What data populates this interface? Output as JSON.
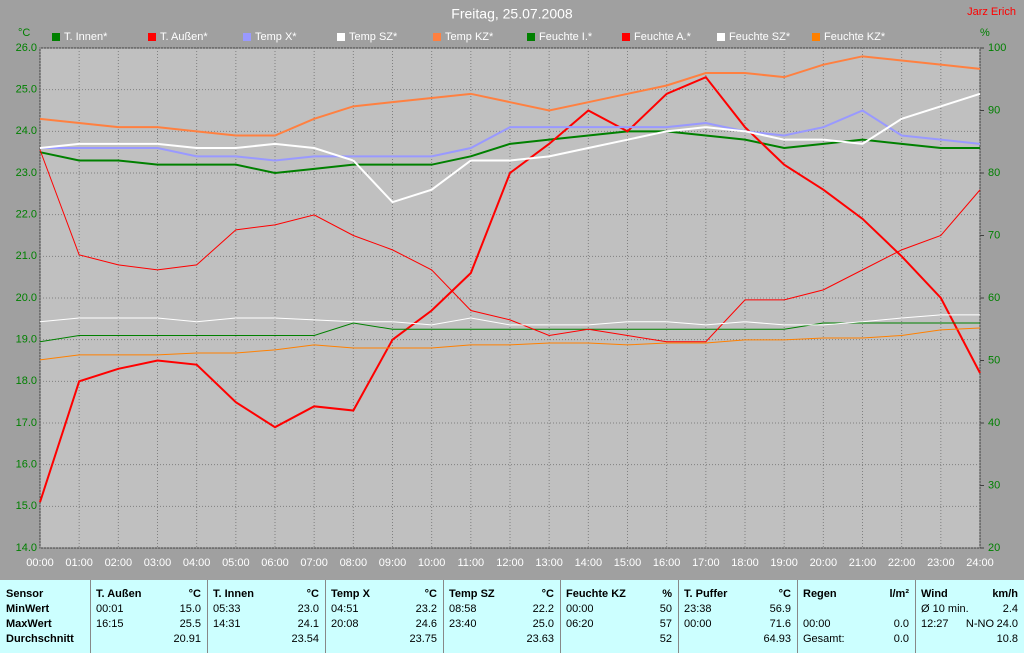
{
  "chart_data": {
    "type": "line",
    "title": "Freitag, 25.07.2008",
    "author": "Jarz Erich",
    "ylabel": "°C",
    "y2label": "%",
    "x": [
      0,
      1,
      2,
      3,
      4,
      5,
      6,
      7,
      8,
      9,
      10,
      11,
      12,
      13,
      14,
      15,
      16,
      17,
      18,
      19,
      20,
      21,
      22,
      23,
      24
    ],
    "xlim": [
      0,
      24
    ],
    "xticks": [
      {
        "value": 0,
        "label": "00:00"
      },
      {
        "value": 1,
        "label": "01:00"
      },
      {
        "value": 2,
        "label": "02:00"
      },
      {
        "value": 3,
        "label": "03:00"
      },
      {
        "value": 4,
        "label": "04:00"
      },
      {
        "value": 5,
        "label": "05:00"
      },
      {
        "value": 6,
        "label": "06:00"
      },
      {
        "value": 7,
        "label": "07:00"
      },
      {
        "value": 8,
        "label": "08:00"
      },
      {
        "value": 9,
        "label": "09:00"
      },
      {
        "value": 10,
        "label": "10:00"
      },
      {
        "value": 11,
        "label": "11:00"
      },
      {
        "value": 12,
        "label": "12:00"
      },
      {
        "value": 13,
        "label": "13:00"
      },
      {
        "value": 14,
        "label": "14:00"
      },
      {
        "value": 15,
        "label": "15:00"
      },
      {
        "value": 16,
        "label": "16:00"
      },
      {
        "value": 17,
        "label": "17:00"
      },
      {
        "value": 18,
        "label": "18:00"
      },
      {
        "value": 19,
        "label": "19:00"
      },
      {
        "value": 20,
        "label": "20:00"
      },
      {
        "value": 21,
        "label": "21:00"
      },
      {
        "value": 22,
        "label": "22:00"
      },
      {
        "value": 23,
        "label": "23:00"
      },
      {
        "value": 24,
        "label": "24:00"
      }
    ],
    "ylim": [
      14,
      26
    ],
    "yticks": [
      {
        "value": 14,
        "label": "14.0"
      },
      {
        "value": 15,
        "label": "15.0"
      },
      {
        "value": 16,
        "label": "16.0"
      },
      {
        "value": 17,
        "label": "17.0"
      },
      {
        "value": 18,
        "label": "18.0"
      },
      {
        "value": 19,
        "label": "19.0"
      },
      {
        "value": 20,
        "label": "20.0"
      },
      {
        "value": 21,
        "label": "21.0"
      },
      {
        "value": 22,
        "label": "22.0"
      },
      {
        "value": 23,
        "label": "23.0"
      },
      {
        "value": 24,
        "label": "24.0"
      },
      {
        "value": 25,
        "label": "25.0"
      },
      {
        "value": 26,
        "label": "26.0"
      }
    ],
    "y2lim": [
      20,
      100
    ],
    "y2ticks": [
      20,
      30,
      40,
      50,
      60,
      70,
      80,
      90,
      100
    ],
    "grid": true,
    "series": [
      {
        "name": "T. Innen*",
        "color": "#008000",
        "values": [
          23.5,
          23.3,
          23.3,
          23.2,
          23.2,
          23.2,
          23.0,
          23.1,
          23.2,
          23.2,
          23.2,
          23.4,
          23.7,
          23.8,
          23.9,
          24.0,
          24.0,
          23.9,
          23.8,
          23.6,
          23.7,
          23.8,
          23.7,
          23.6,
          23.6
        ]
      },
      {
        "name": "T. Außen*",
        "color": "#ff0000",
        "values": [
          15.1,
          18.0,
          18.3,
          18.5,
          18.4,
          17.5,
          16.9,
          17.4,
          17.3,
          19.0,
          19.7,
          20.6,
          23.0,
          23.7,
          24.5,
          24.0,
          24.9,
          25.3,
          24.1,
          23.2,
          22.6,
          21.9,
          21.0,
          20.0,
          18.2
        ]
      },
      {
        "name": "Temp X*",
        "color": "#9999ff",
        "values": [
          23.6,
          23.6,
          23.6,
          23.6,
          23.4,
          23.4,
          23.3,
          23.4,
          23.4,
          23.4,
          23.4,
          23.6,
          24.1,
          24.1,
          24.1,
          24.1,
          24.1,
          24.2,
          24.0,
          23.9,
          24.1,
          24.5,
          23.9,
          23.8,
          23.7
        ]
      },
      {
        "name": "Temp SZ*",
        "color": "#ffffff",
        "values": [
          23.6,
          23.7,
          23.7,
          23.7,
          23.6,
          23.6,
          23.7,
          23.6,
          23.3,
          22.3,
          22.6,
          23.3,
          23.3,
          23.4,
          23.6,
          23.8,
          24.0,
          24.1,
          24.0,
          23.8,
          23.8,
          23.7,
          24.3,
          24.6,
          24.9
        ]
      },
      {
        "name": "Temp KZ*",
        "color": "#ff8040",
        "values": [
          24.3,
          24.2,
          24.1,
          24.1,
          24.0,
          23.9,
          23.9,
          24.3,
          24.6,
          24.7,
          24.8,
          24.9,
          24.7,
          24.5,
          24.7,
          24.9,
          25.1,
          25.4,
          25.4,
          25.3,
          25.6,
          25.8,
          25.7,
          25.6,
          25.5
        ]
      },
      {
        "name": "Feuchte I.*",
        "color": "#008000",
        "axis": "y2",
        "values": [
          53,
          54,
          54,
          54,
          54,
          54,
          54,
          54,
          56,
          55,
          55,
          55,
          55,
          55,
          55,
          55,
          55,
          55,
          55,
          55,
          56,
          56,
          56,
          56,
          56
        ]
      },
      {
        "name": "Feuchte A.*",
        "color": "#ff0000",
        "axis": "y2",
        "values": [
          83.7,
          66.9,
          65.3,
          64.5,
          65.3,
          70.9,
          71.7,
          73.3,
          70,
          67.7,
          64.5,
          58,
          56.5,
          54,
          55,
          54,
          53,
          53,
          59.7,
          59.7,
          61.3,
          64.5,
          67.7,
          70,
          77.3
        ]
      },
      {
        "name": "Feuchte SZ*",
        "color": "#ffffff",
        "axis": "y2",
        "values": [
          56.2,
          56.8,
          56.8,
          56.8,
          56.2,
          56.8,
          56.8,
          56.5,
          56.2,
          56.2,
          55.7,
          56.8,
          55.7,
          55.7,
          55.7,
          56.2,
          56.2,
          55.7,
          56.2,
          55.7,
          55.7,
          56.2,
          56.8,
          57.3,
          57.3
        ]
      },
      {
        "name": "Feuchte KZ*",
        "color": "#ff8000",
        "axis": "y2",
        "values": [
          50.1,
          50.9,
          50.9,
          50.9,
          51.2,
          51.2,
          51.7,
          52.5,
          52,
          52,
          52,
          52.5,
          52.5,
          52.8,
          52.8,
          52.5,
          52.8,
          52.8,
          53.3,
          53.3,
          53.6,
          53.6,
          54,
          54.9,
          55.2
        ]
      }
    ]
  },
  "table": {
    "row_labels": [
      "Sensor",
      "MinWert",
      "MaxWert",
      "Durchschnitt"
    ],
    "columns": [
      {
        "name": "T. Außen",
        "unit": "°C",
        "rows": [
          [
            "00:01",
            "15.0"
          ],
          [
            "16:15",
            "25.5"
          ],
          [
            "20.91"
          ]
        ]
      },
      {
        "name": "T. Innen",
        "unit": "°C",
        "rows": [
          [
            "05:33",
            "23.0"
          ],
          [
            "14:31",
            "24.1"
          ],
          [
            "23.54"
          ]
        ]
      },
      {
        "name": "Temp X",
        "unit": "°C",
        "rows": [
          [
            "04:51",
            "23.2"
          ],
          [
            "20:08",
            "24.6"
          ],
          [
            "23.75"
          ]
        ]
      },
      {
        "name": "Temp SZ",
        "unit": "°C",
        "rows": [
          [
            "08:58",
            "22.2"
          ],
          [
            "23:40",
            "25.0"
          ],
          [
            "23.63"
          ]
        ]
      },
      {
        "name": "Feuchte KZ",
        "unit": "%",
        "rows": [
          [
            "00:00",
            "50"
          ],
          [
            "06:20",
            "57"
          ],
          [
            "52"
          ]
        ]
      },
      {
        "name": "T. Puffer",
        "unit": "°C",
        "rows": [
          [
            "23:38",
            "56.9"
          ],
          [
            "00:00",
            "71.6"
          ],
          [
            "64.93"
          ]
        ]
      },
      {
        "name": "Regen",
        "unit": "l/m²",
        "rows": [
          [],
          [
            "00:00",
            "0.0"
          ],
          [
            "Gesamt:",
            "0.0"
          ]
        ]
      },
      {
        "name": "Wind",
        "unit": "km/h",
        "rows": [
          [
            "Ø 10 min.",
            "2.4"
          ],
          [
            "12:27",
            "N-NO",
            "24.0"
          ],
          [
            "10.8"
          ]
        ]
      }
    ]
  }
}
